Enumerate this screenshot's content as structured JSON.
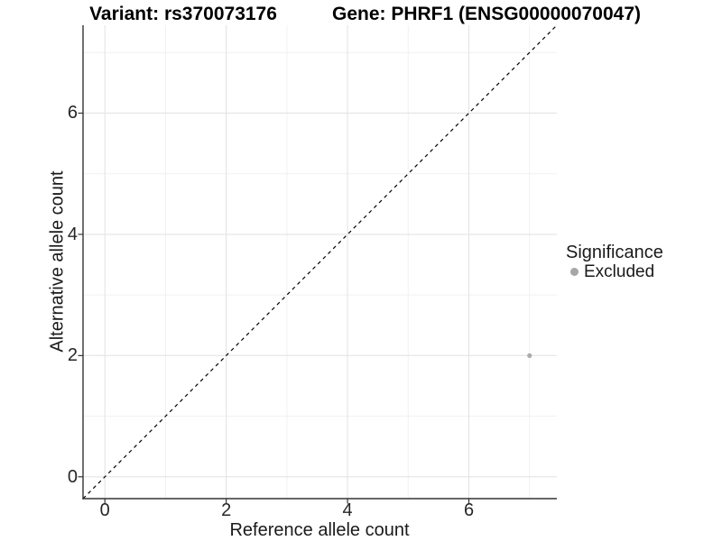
{
  "chart_data": {
    "type": "scatter",
    "titles": {
      "variant": "Variant: rs370073176",
      "gene": "Gene: PHRF1 (ENSG00000070047)"
    },
    "xlabel": "Reference allele count",
    "ylabel": "Alternative allele count",
    "xlim": [
      -0.36,
      7.45
    ],
    "ylim": [
      -0.36,
      7.45
    ],
    "xticks": [
      0,
      2,
      4,
      6
    ],
    "yticks": [
      0,
      2,
      4,
      6
    ],
    "xminorticks": [
      1,
      3,
      5,
      7
    ],
    "yminorticks": [
      1,
      3,
      5,
      7
    ],
    "grid": "major_and_minor",
    "series": [
      {
        "name": "Excluded",
        "color": "#ababab",
        "point_radius": 2.6,
        "points": [
          {
            "x": 7,
            "y": 2
          }
        ]
      }
    ],
    "reference_line": {
      "equation": "y = x",
      "style": "dashed",
      "color": "#000000"
    },
    "legend": {
      "title": "Significance",
      "position": "right",
      "entries": [
        {
          "label": "Excluded",
          "color": "#a6a6a6"
        }
      ]
    },
    "colors": {
      "grid_major": "#e4e4e4",
      "grid_minor": "#f1f1f1",
      "axis": "#333333",
      "tick_text": "#262626",
      "title_text": "#000000",
      "background": "#ffffff"
    }
  }
}
